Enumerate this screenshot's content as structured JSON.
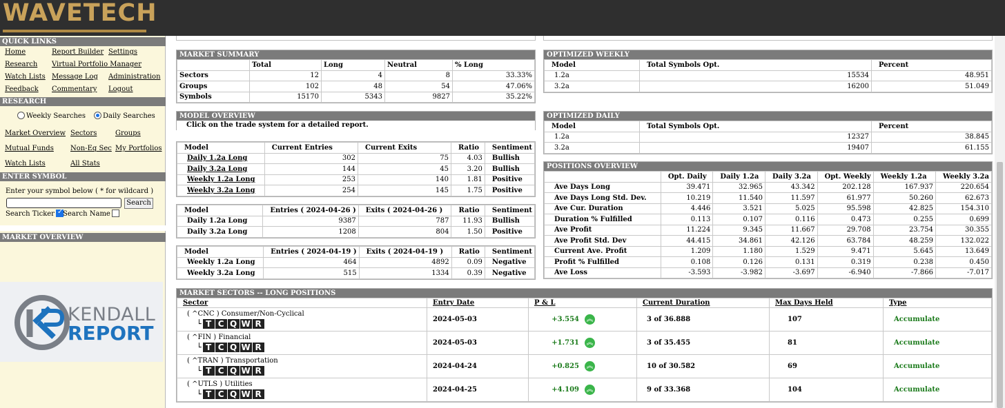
{
  "brand": {
    "logo_text": "WAVETECH",
    "logo_color": "#c9a25a"
  },
  "sidebar": {
    "quick_links_title": "QUICK LINKS",
    "quick_links": [
      "Home",
      "Report Builder",
      "Settings",
      "Research",
      "Virtual Portfolio Manager",
      "Watch Lists",
      "Message Log",
      "Administration",
      "Feedback",
      "Commentary",
      "Logout"
    ],
    "research_title": "RESEARCH",
    "weekly_label": "Weekly Searches",
    "daily_label": "Daily Searches",
    "research_links": [
      "Market Overview",
      "Sectors",
      "Groups",
      "Mutual Funds",
      "Non-Eq Sec",
      "My Portfolios",
      "Watch Lists",
      "All Stats"
    ],
    "enter_symbol_title": "ENTER SYMBOL",
    "enter_symbol_hint": "Enter your symbol below ( * for wildcard )",
    "search_button": "Search",
    "search_ticker_label": "Search Ticker",
    "search_name_label": "Search Name",
    "market_overview_title": "MARKET OVERVIEW",
    "kendall_top": "KENDALL",
    "kendall_bottom": "REPORT"
  },
  "market_summary": {
    "title": "MARKET SUMMARY",
    "headers": [
      "",
      "Total",
      "Long",
      "Neutral",
      "% Long"
    ],
    "rows": [
      [
        "Sectors",
        "12",
        "4",
        "8",
        "33.33%"
      ],
      [
        "Groups",
        "102",
        "48",
        "54",
        "47.06%"
      ],
      [
        "Symbols",
        "15170",
        "5343",
        "9827",
        "35.22%"
      ]
    ]
  },
  "optimized_weekly": {
    "title": "OPTIMIZED WEEKLY",
    "headers": [
      "Model",
      "Total Symbols Opt.",
      "Percent"
    ],
    "rows": [
      [
        "1.2a",
        "15534",
        "48.951"
      ],
      [
        "3.2a",
        "16200",
        "51.049"
      ]
    ]
  },
  "optimized_daily": {
    "title": "OPTIMIZED DAILY",
    "headers": [
      "Model",
      "Total Symbols Opt.",
      "Percent"
    ],
    "rows": [
      [
        "1.2a",
        "12327",
        "38.845"
      ],
      [
        "3.2a",
        "19407",
        "61.155"
      ]
    ]
  },
  "model_overview": {
    "title": "MODEL OVERVIEW",
    "note": "Click on the trade system for a detailed report.",
    "t1_headers": [
      "Model",
      "Current Entries",
      "Current Exits",
      "Ratio",
      "Sentiment"
    ],
    "t1_rows": [
      [
        "Daily 1.2a Long",
        "302",
        "75",
        "4.03",
        "Bullish"
      ],
      [
        "Daily 3.2a Long",
        "144",
        "45",
        "3.20",
        "Bullish"
      ],
      [
        "Weekly 1.2a Long",
        "253",
        "140",
        "1.81",
        "Positive"
      ],
      [
        "Weekly 3.2a Long",
        "254",
        "145",
        "1.75",
        "Positive"
      ]
    ],
    "t2_headers": [
      "Model",
      "Entries ( 2024-04-26 )",
      "Exits ( 2024-04-26 )",
      "Ratio",
      "Sentiment"
    ],
    "t2_rows": [
      [
        "Daily 1.2a Long",
        "9387",
        "787",
        "11.93",
        "Bullish"
      ],
      [
        "Daily 3.2a Long",
        "1208",
        "804",
        "1.50",
        "Positive"
      ]
    ],
    "t3_headers": [
      "Model",
      "Entries ( 2024-04-19 )",
      "Exits ( 2024-04-19 )",
      "Ratio",
      "Sentiment"
    ],
    "t3_rows": [
      [
        "Weekly 1.2a Long",
        "464",
        "4892",
        "0.09",
        "Negative"
      ],
      [
        "Weekly 3.2a Long",
        "515",
        "1334",
        "0.39",
        "Negative"
      ]
    ]
  },
  "positions_overview": {
    "title": "POSITIONS OVERVIEW",
    "headers": [
      "",
      "Opt. Daily",
      "Daily 1.2a",
      "Daily 3.2a",
      "Opt. Weekly",
      "Weekly 1.2a",
      "Weekly 3.2a"
    ],
    "rows": [
      [
        "Ave Days Long",
        "39.471",
        "32.965",
        "43.342",
        "202.128",
        "167.937",
        "220.654"
      ],
      [
        "Ave Days Long Std. Dev.",
        "10.219",
        "11.540",
        "11.597",
        "61.977",
        "50.260",
        "62.673"
      ],
      [
        "Ave Cur. Duration",
        "4.446",
        "3.521",
        "5.025",
        "95.598",
        "42.825",
        "154.310"
      ],
      [
        "Duration % Fulfilled",
        "0.113",
        "0.107",
        "0.116",
        "0.473",
        "0.255",
        "0.699"
      ],
      [
        "Ave Profit",
        "11.224",
        "9.345",
        "11.667",
        "29.708",
        "23.754",
        "30.355"
      ],
      [
        "Ave Profit Std. Dev",
        "44.415",
        "34.861",
        "42.126",
        "63.784",
        "48.259",
        "132.022"
      ],
      [
        "Current Ave. Profit",
        "1.209",
        "1.180",
        "1.529",
        "9.471",
        "5.645",
        "13.649"
      ],
      [
        "Profit % Fulfilled",
        "0.108",
        "0.126",
        "0.131",
        "0.319",
        "0.238",
        "0.450"
      ],
      [
        "Ave Loss",
        "-3.593",
        "-3.982",
        "-3.697",
        "-6.940",
        "-7.866",
        "-7.017"
      ]
    ]
  },
  "market_sectors": {
    "title": "MARKET SECTORS -- LONG POSITIONS",
    "headers": [
      "Sector",
      "Entry Date",
      "P & L",
      "Current Duration",
      "Max Days Held",
      "Type"
    ],
    "tcqwr": [
      "T",
      "C",
      "Q",
      "W",
      "R"
    ],
    "rows": [
      {
        "sector": "( ^CNC ) Consumer/Non-Cyclical",
        "entry": "2024-05-03",
        "pnl": "+3.554",
        "duration": "3 of 36.888",
        "max": "107",
        "type": "Accumulate"
      },
      {
        "sector": "( ^FIN ) Financial",
        "entry": "2024-05-03",
        "pnl": "+1.731",
        "duration": "3 of 35.455",
        "max": "81",
        "type": "Accumulate"
      },
      {
        "sector": "( ^TRAN ) Transportation",
        "entry": "2024-04-24",
        "pnl": "+0.825",
        "duration": "10 of 30.582",
        "max": "69",
        "type": "Accumulate"
      },
      {
        "sector": "( ^UTLS ) Utilities",
        "entry": "2024-04-25",
        "pnl": "+4.109",
        "duration": "9 of 33.368",
        "max": "104",
        "type": "Accumulate"
      }
    ]
  }
}
